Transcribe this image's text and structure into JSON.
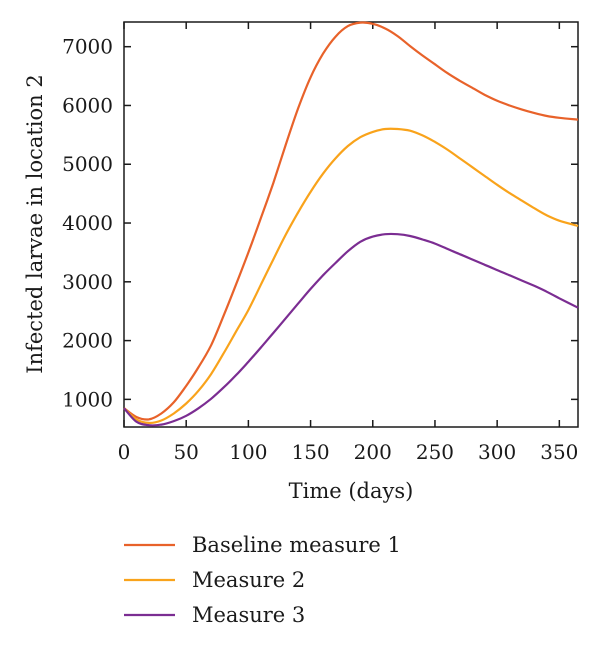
{
  "chart_data": {
    "type": "line",
    "xlabel": "Time (days)",
    "ylabel": "Infected larvae in location 2",
    "xlim": [
      0,
      365
    ],
    "ylim": [
      530,
      7420
    ],
    "x_ticks": [
      0,
      50,
      100,
      150,
      200,
      250,
      300,
      350
    ],
    "y_ticks": [
      1000,
      2000,
      3000,
      4000,
      5000,
      6000,
      7000
    ],
    "grid": false,
    "legend_position": "below",
    "series": [
      {
        "name": "Baseline measure 1",
        "color": "#e8622a",
        "points": [
          [
            0,
            850
          ],
          [
            10,
            700
          ],
          [
            20,
            660
          ],
          [
            30,
            760
          ],
          [
            40,
            950
          ],
          [
            50,
            1230
          ],
          [
            60,
            1550
          ],
          [
            70,
            1920
          ],
          [
            80,
            2420
          ],
          [
            90,
            2950
          ],
          [
            100,
            3500
          ],
          [
            110,
            4080
          ],
          [
            120,
            4680
          ],
          [
            130,
            5330
          ],
          [
            140,
            5950
          ],
          [
            150,
            6480
          ],
          [
            160,
            6880
          ],
          [
            170,
            7170
          ],
          [
            180,
            7350
          ],
          [
            190,
            7410
          ],
          [
            200,
            7390
          ],
          [
            210,
            7310
          ],
          [
            220,
            7180
          ],
          [
            230,
            7010
          ],
          [
            240,
            6850
          ],
          [
            250,
            6700
          ],
          [
            260,
            6550
          ],
          [
            270,
            6420
          ],
          [
            280,
            6300
          ],
          [
            290,
            6180
          ],
          [
            300,
            6080
          ],
          [
            310,
            6000
          ],
          [
            320,
            5930
          ],
          [
            330,
            5870
          ],
          [
            340,
            5820
          ],
          [
            350,
            5790
          ],
          [
            365,
            5760
          ]
        ]
      },
      {
        "name": "Measure 2",
        "color": "#f9a31b",
        "points": [
          [
            0,
            850
          ],
          [
            10,
            660
          ],
          [
            20,
            600
          ],
          [
            30,
            640
          ],
          [
            40,
            760
          ],
          [
            50,
            930
          ],
          [
            60,
            1150
          ],
          [
            70,
            1430
          ],
          [
            80,
            1780
          ],
          [
            90,
            2150
          ],
          [
            100,
            2520
          ],
          [
            110,
            2950
          ],
          [
            120,
            3380
          ],
          [
            130,
            3800
          ],
          [
            140,
            4180
          ],
          [
            150,
            4530
          ],
          [
            160,
            4840
          ],
          [
            170,
            5100
          ],
          [
            180,
            5310
          ],
          [
            190,
            5460
          ],
          [
            200,
            5550
          ],
          [
            210,
            5600
          ],
          [
            220,
            5600
          ],
          [
            230,
            5570
          ],
          [
            240,
            5490
          ],
          [
            250,
            5380
          ],
          [
            260,
            5250
          ],
          [
            270,
            5100
          ],
          [
            280,
            4950
          ],
          [
            290,
            4800
          ],
          [
            300,
            4650
          ],
          [
            310,
            4510
          ],
          [
            320,
            4380
          ],
          [
            330,
            4250
          ],
          [
            340,
            4130
          ],
          [
            350,
            4040
          ],
          [
            365,
            3950
          ]
        ]
      },
      {
        "name": "Measure 3",
        "color": "#7b2d92",
        "points": [
          [
            0,
            850
          ],
          [
            10,
            620
          ],
          [
            20,
            560
          ],
          [
            30,
            570
          ],
          [
            40,
            630
          ],
          [
            50,
            720
          ],
          [
            60,
            850
          ],
          [
            70,
            1010
          ],
          [
            80,
            1200
          ],
          [
            90,
            1410
          ],
          [
            100,
            1640
          ],
          [
            110,
            1880
          ],
          [
            120,
            2130
          ],
          [
            130,
            2380
          ],
          [
            140,
            2630
          ],
          [
            150,
            2880
          ],
          [
            160,
            3110
          ],
          [
            170,
            3320
          ],
          [
            180,
            3520
          ],
          [
            190,
            3680
          ],
          [
            200,
            3770
          ],
          [
            210,
            3810
          ],
          [
            220,
            3810
          ],
          [
            230,
            3780
          ],
          [
            240,
            3720
          ],
          [
            250,
            3650
          ],
          [
            260,
            3560
          ],
          [
            270,
            3470
          ],
          [
            280,
            3380
          ],
          [
            290,
            3290
          ],
          [
            300,
            3200
          ],
          [
            310,
            3110
          ],
          [
            320,
            3020
          ],
          [
            330,
            2930
          ],
          [
            340,
            2830
          ],
          [
            350,
            2720
          ],
          [
            365,
            2560
          ]
        ]
      }
    ]
  }
}
